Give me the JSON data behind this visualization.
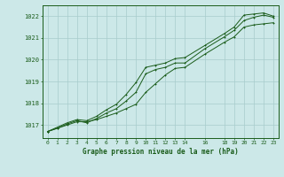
{
  "title": "Graphe pression niveau de la mer (hPa)",
  "bg_color": "#cce8e8",
  "line_color": "#1a5c1a",
  "grid_color": "#a8cccc",
  "x_ticks": [
    0,
    1,
    2,
    3,
    4,
    5,
    6,
    7,
    8,
    9,
    10,
    11,
    12,
    13,
    14,
    16,
    18,
    19,
    20,
    21,
    22,
    23
  ],
  "x_tick_labels": [
    "0",
    "1",
    "2",
    "3",
    "4",
    "5",
    "6",
    "7",
    "8",
    "9",
    "10",
    "11",
    "12",
    "13",
    "14",
    "16",
    "18",
    "19",
    "20",
    "21",
    "22",
    "23"
  ],
  "ylim": [
    1016.4,
    1022.5
  ],
  "xlim": [
    -0.5,
    23.5
  ],
  "yticks": [
    1017,
    1018,
    1019,
    1020,
    1021,
    1022
  ],
  "series_lower_x": [
    0,
    1,
    2,
    3,
    4,
    5,
    6,
    7,
    8,
    9,
    10,
    11,
    12,
    13,
    14,
    16,
    18,
    19,
    20,
    21,
    22,
    23
  ],
  "series_lower_y": [
    1016.7,
    1016.85,
    1017.0,
    1017.15,
    1017.15,
    1017.25,
    1017.4,
    1017.55,
    1017.75,
    1017.95,
    1018.5,
    1018.9,
    1019.3,
    1019.6,
    1019.65,
    1020.25,
    1020.8,
    1021.05,
    1021.5,
    1021.6,
    1021.65,
    1021.7
  ],
  "series_mid_x": [
    0,
    1,
    2,
    3,
    4,
    5,
    6,
    7,
    8,
    9,
    10,
    11,
    12,
    13,
    14,
    16,
    18,
    19,
    20,
    21,
    22,
    23
  ],
  "series_mid_y": [
    1016.7,
    1016.85,
    1017.05,
    1017.2,
    1017.1,
    1017.3,
    1017.55,
    1017.75,
    1018.1,
    1018.5,
    1019.35,
    1019.55,
    1019.65,
    1019.85,
    1019.85,
    1020.5,
    1021.05,
    1021.35,
    1021.8,
    1021.95,
    1022.05,
    1021.95
  ],
  "series_upper_x": [
    0,
    1,
    2,
    3,
    4,
    5,
    6,
    7,
    8,
    9,
    10,
    11,
    12,
    13,
    14,
    16,
    18,
    19,
    20,
    21,
    22,
    23
  ],
  "series_upper_y": [
    1016.7,
    1016.9,
    1017.1,
    1017.25,
    1017.2,
    1017.4,
    1017.7,
    1017.95,
    1018.4,
    1018.95,
    1019.65,
    1019.75,
    1019.85,
    1020.05,
    1020.1,
    1020.65,
    1021.2,
    1021.5,
    1022.05,
    1022.1,
    1022.15,
    1022.0
  ]
}
